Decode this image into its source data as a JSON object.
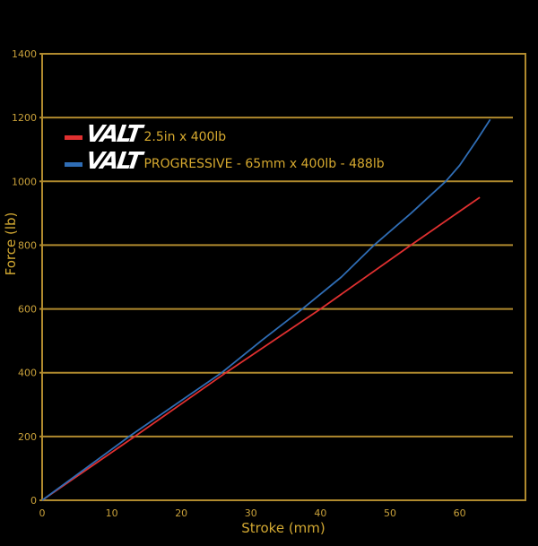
{
  "chart_data": {
    "type": "line",
    "title": "",
    "xlabel": "Stroke (mm)",
    "ylabel": "Force (lb)",
    "xlim": [
      0,
      70
    ],
    "ylim": [
      0,
      1400
    ],
    "x_ticks": [
      0,
      10,
      20,
      30,
      40,
      50,
      60
    ],
    "y_ticks": [
      0,
      200,
      400,
      600,
      800,
      1000,
      1200,
      1400
    ],
    "grid": "horizontal",
    "legend_position": "upper-left",
    "series": [
      {
        "name": "VALT 2.5in x 400lb",
        "brand": "VALT",
        "description": "2.5in x 400lb",
        "color": "#e03030",
        "x": [
          0,
          13.3,
          26.4,
          40,
          53,
          62.9
        ],
        "y": [
          0,
          200,
          400,
          600,
          800,
          950
        ]
      },
      {
        "name": "VALT PROGRESSIVE - 65mm x 400lb - 488lb",
        "brand": "VALT",
        "description": "PROGRESSIVE - 65mm x 400lb - 488lb",
        "color": "#2f6db5",
        "x": [
          0,
          12.5,
          25.8,
          31.5,
          37.4,
          43,
          47.7,
          53,
          58,
          60,
          62.5,
          64.4
        ],
        "y": [
          0,
          200,
          400,
          500,
          600,
          700,
          800,
          900,
          1000,
          1050,
          1130,
          1194
        ]
      }
    ]
  },
  "colors": {
    "axis": "#b08a2e",
    "grid": "#b08a2e",
    "text": "#c9a13a",
    "background": "#000000"
  }
}
